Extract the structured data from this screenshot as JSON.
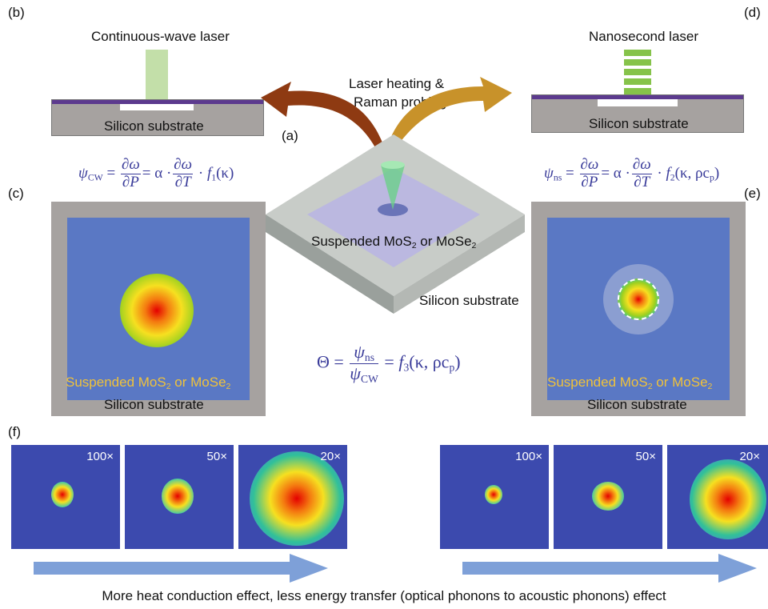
{
  "panels": {
    "a": "(a)",
    "b": "(b)",
    "c": "(c)",
    "d": "(d)",
    "e": "(e)",
    "f": "(f)"
  },
  "labels": {
    "cw_laser": "Continuous-wave laser",
    "ns_laser": "Nanosecond laser",
    "substrate": "Silicon substrate",
    "laser_heating_line1": "Laser heating &",
    "laser_heating_line2": "Raman probing",
    "suspended": "Suspended MoS",
    "suspended_or": " or MoSe",
    "sub2": "2"
  },
  "equations": {
    "psi": "ψ",
    "cw_sub": "CW",
    "ns_sub": "ns",
    "eq_sign": " = ",
    "d_omega": "∂ω",
    "d_P": "∂P",
    "d_T": "∂T",
    "alpha_dot": "= α ·",
    "dot": " · ",
    "f1": "f",
    "f1_sub": "1",
    "f1_arg": "(κ)",
    "f2_sub": "2",
    "f2_arg": "(κ, ρc",
    "p_sub": "p",
    "close": ")",
    "theta": "Θ = ",
    "f3_sub": "3"
  },
  "magnifications": [
    "100×",
    "50×",
    "20×",
    "100×",
    "50×",
    "20×"
  ],
  "caption": "More heat conduction effect, less energy transfer (optical phonons to acoustic phonons) effect",
  "colors": {
    "substrate_gray": "#a6a2a0",
    "film_purple": "#5c3a8e",
    "map_blue": "#5a78c4",
    "eq_color": "#3a3c9a",
    "arrow_brown": "#8e3a12",
    "arrow_gold": "#c8922a",
    "progress_arrow": "#7ea0d8"
  }
}
